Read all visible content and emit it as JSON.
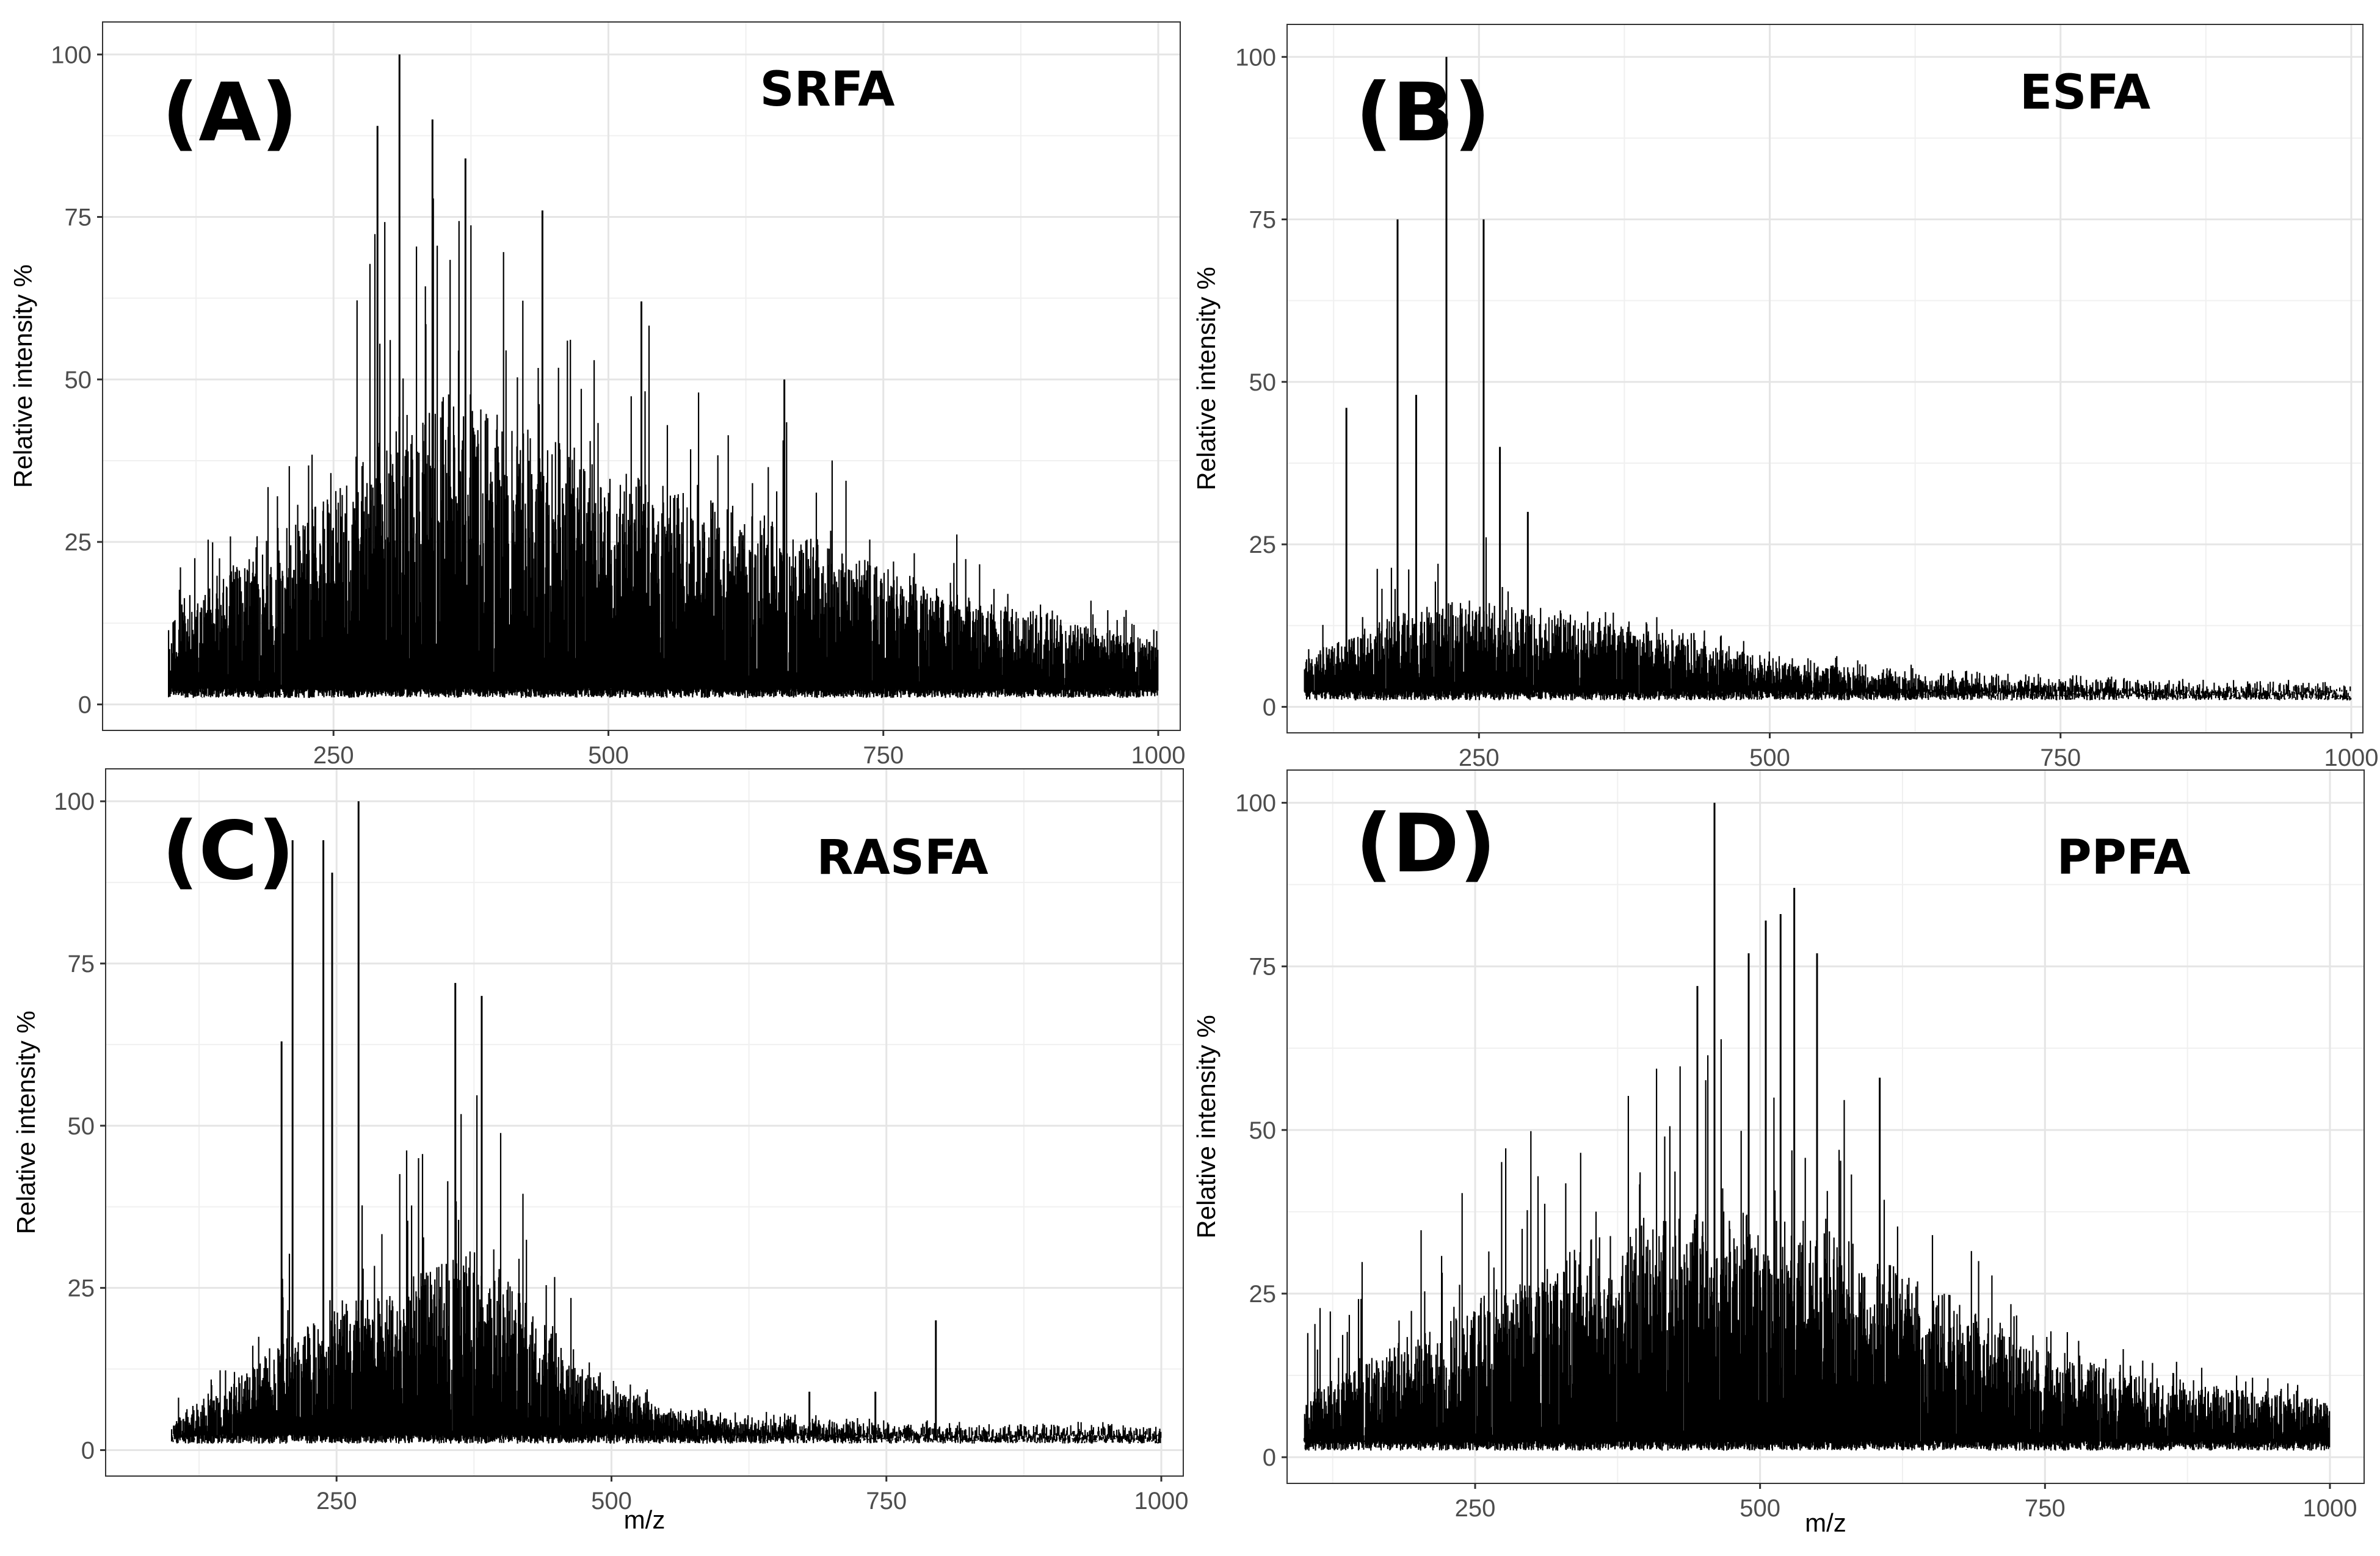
{
  "figure": {
    "y_axis_label": "Relative intensity %",
    "x_axis_label": "m/z",
    "tick_labels_y": [
      "0",
      "25",
      "50",
      "75",
      "100"
    ],
    "tick_labels_x": [
      "250",
      "500",
      "750",
      "1000"
    ]
  },
  "chart_data": [
    {
      "type": "line",
      "panel": "(A)",
      "title": "SRFA",
      "xlabel": "",
      "ylabel": "Relative intensity %",
      "xlim": [
        40,
        1020
      ],
      "ylim": [
        -4,
        105
      ],
      "xticks": [
        250,
        500,
        750,
        1000
      ],
      "yticks": [
        0,
        25,
        50,
        75,
        100
      ],
      "mz_range": [
        100,
        1000
      ],
      "envelope": {
        "x": [
          100,
          150,
          200,
          250,
          280,
          300,
          310,
          330,
          350,
          380,
          400,
          450,
          500,
          550,
          600,
          650,
          700,
          750,
          800,
          850,
          900,
          950,
          1000
        ],
        "max": [
          20,
          30,
          35,
          45,
          70,
          85,
          90,
          84,
          88,
          84,
          75,
          60,
          55,
          62,
          52,
          48,
          38,
          33,
          28,
          25,
          18,
          16,
          13
        ],
        "floor": [
          10,
          18,
          22,
          28,
          32,
          36,
          38,
          38,
          40,
          40,
          38,
          34,
          32,
          28,
          26,
          24,
          20,
          18,
          15,
          13,
          12,
          10,
          8
        ]
      },
      "labeled_peaks": [
        {
          "x": 310,
          "y": 100
        },
        {
          "x": 290,
          "y": 89
        },
        {
          "x": 340,
          "y": 90
        },
        {
          "x": 370,
          "y": 84
        },
        {
          "x": 440,
          "y": 76
        },
        {
          "x": 530,
          "y": 62
        },
        {
          "x": 660,
          "y": 50
        }
      ],
      "grid": true
    },
    {
      "type": "line",
      "panel": "(B)",
      "title": "ESFA",
      "xlabel": "",
      "ylabel": "Relative intensity %",
      "xlim": [
        85,
        1010
      ],
      "ylim": [
        -4,
        105
      ],
      "xticks": [
        250,
        500,
        750,
        1000
      ],
      "yticks": [
        0,
        25,
        50,
        75,
        100
      ],
      "mz_range": [
        100,
        1000
      ],
      "envelope": {
        "x": [
          100,
          150,
          200,
          250,
          300,
          350,
          400,
          450,
          500,
          600,
          700,
          800,
          900,
          1000
        ],
        "max": [
          10,
          20,
          25,
          28,
          18,
          16,
          14,
          12,
          9,
          7,
          5,
          4,
          3,
          2.5
        ],
        "floor": [
          6,
          10,
          13,
          14,
          12,
          11,
          10,
          8,
          6,
          4,
          3,
          2.5,
          2,
          1.5
        ]
      },
      "labeled_peaks": [
        {
          "x": 222,
          "y": 100
        },
        {
          "x": 180,
          "y": 75
        },
        {
          "x": 254,
          "y": 75
        },
        {
          "x": 136,
          "y": 46
        },
        {
          "x": 196,
          "y": 48
        },
        {
          "x": 268,
          "y": 40
        },
        {
          "x": 292,
          "y": 30
        }
      ],
      "grid": true
    },
    {
      "type": "line",
      "panel": "(C)",
      "title": "RASFA",
      "xlabel": "m/z",
      "ylabel": "Relative intensity %",
      "xlim": [
        40,
        1020
      ],
      "ylim": [
        -4,
        105
      ],
      "xticks": [
        250,
        500,
        750,
        1000
      ],
      "yticks": [
        0,
        25,
        50,
        75,
        100
      ],
      "mz_range": [
        100,
        1000
      ],
      "envelope": {
        "x": [
          100,
          150,
          200,
          250,
          300,
          350,
          380,
          420,
          460,
          500,
          550,
          600,
          700,
          800,
          900,
          1000
        ],
        "max": [
          8,
          15,
          30,
          35,
          45,
          55,
          60,
          40,
          25,
          12,
          8,
          6,
          5,
          4,
          3,
          3
        ],
        "floor": [
          3,
          8,
          14,
          18,
          22,
          25,
          26,
          20,
          12,
          8,
          5,
          4,
          3,
          2,
          2,
          2
        ]
      },
      "labeled_peaks": [
        {
          "x": 270,
          "y": 100
        },
        {
          "x": 210,
          "y": 94
        },
        {
          "x": 238,
          "y": 94
        },
        {
          "x": 246,
          "y": 89
        },
        {
          "x": 200,
          "y": 63
        },
        {
          "x": 358,
          "y": 72
        },
        {
          "x": 382,
          "y": 70
        },
        {
          "x": 795,
          "y": 20
        },
        {
          "x": 680,
          "y": 9
        },
        {
          "x": 740,
          "y": 9
        }
      ],
      "grid": true
    },
    {
      "type": "line",
      "panel": "(D)",
      "title": "PPFA",
      "xlabel": "m/z",
      "ylabel": "Relative intensity %",
      "xlim": [
        85,
        1030
      ],
      "ylim": [
        -4,
        105
      ],
      "xticks": [
        250,
        500,
        750,
        1000
      ],
      "yticks": [
        0,
        25,
        50,
        75,
        100
      ],
      "mz_range": [
        100,
        1000
      ],
      "envelope": {
        "x": [
          100,
          150,
          200,
          250,
          300,
          350,
          400,
          450,
          500,
          550,
          600,
          650,
          700,
          750,
          800,
          850,
          900,
          950,
          1000
        ],
        "max": [
          22,
          30,
          38,
          45,
          52,
          58,
          62,
          66,
          70,
          62,
          52,
          40,
          32,
          22,
          18,
          15,
          14,
          12,
          10
        ],
        "floor": [
          8,
          12,
          16,
          20,
          24,
          28,
          30,
          32,
          32,
          30,
          26,
          22,
          18,
          14,
          12,
          10,
          9,
          8,
          7
        ]
      },
      "labeled_peaks": [
        {
          "x": 460,
          "y": 100
        },
        {
          "x": 530,
          "y": 87
        },
        {
          "x": 518,
          "y": 83
        },
        {
          "x": 505,
          "y": 82
        },
        {
          "x": 490,
          "y": 77
        },
        {
          "x": 550,
          "y": 77
        },
        {
          "x": 445,
          "y": 72
        },
        {
          "x": 605,
          "y": 58
        }
      ],
      "grid": true
    }
  ]
}
